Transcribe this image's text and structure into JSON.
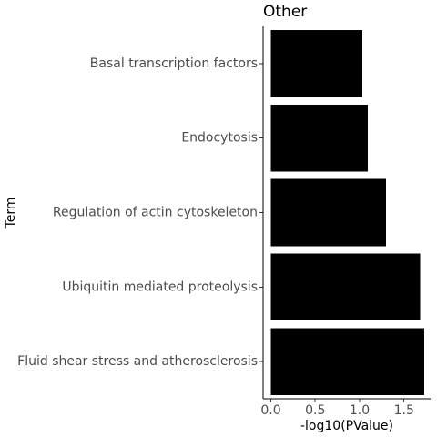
{
  "chart_data": {
    "type": "bar",
    "orientation": "horizontal",
    "title": "Other",
    "xlabel": "-log10(PValue)",
    "ylabel": "Term",
    "categories": [
      "Basal transcription factors",
      "Endocytosis",
      "Regulation of actin cytoskeleton",
      "Ubiquitin mediated proteolysis",
      "Fluid shear stress and atherosclerosis"
    ],
    "values": [
      1.03,
      1.09,
      1.3,
      1.68,
      1.73
    ],
    "xlim": [
      -0.087,
      1.8
    ],
    "xticks": [
      0.0,
      0.5,
      1.0,
      1.5
    ],
    "xtick_labels": [
      "0.0",
      "0.5",
      "1.0",
      "1.5"
    ],
    "bar_color": "#000000",
    "grid": false,
    "legend": "none"
  }
}
